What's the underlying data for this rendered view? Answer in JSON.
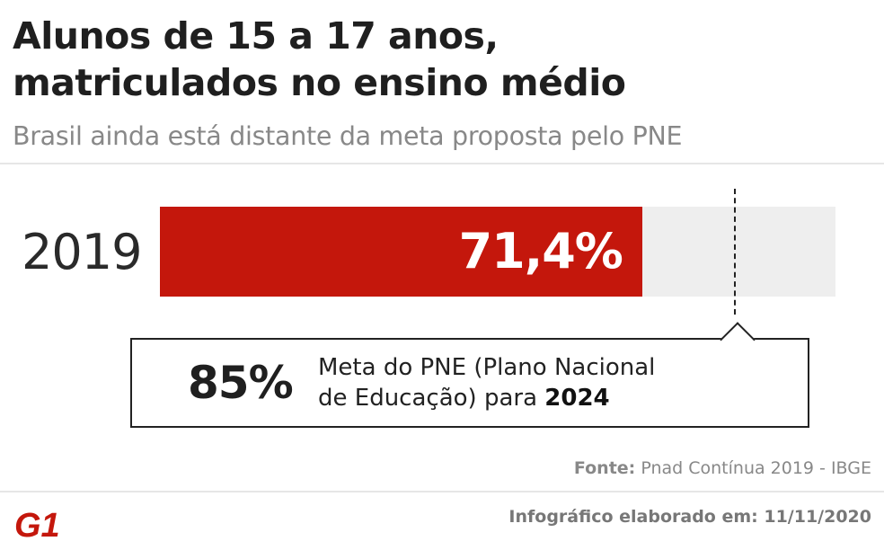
{
  "header": {
    "title_line1": "Alunos de 15 a 17 anos,",
    "title_line2": "matriculados no ensino médio",
    "subtitle": "Brasil ainda está distante da meta proposta pelo PNE"
  },
  "chart_data": {
    "type": "bar",
    "categories": [
      "2019"
    ],
    "values": [
      71.4
    ],
    "value_labels": [
      "71,4%"
    ],
    "xlim": [
      0,
      100
    ],
    "target": {
      "value": 85,
      "label": "85%",
      "description_prefix": "Meta do PNE (Plano Nacional",
      "description_middle": "de Educação) para",
      "description_year": "2024"
    },
    "colors": {
      "bar": "#c4170c",
      "track": "#eeeeee"
    }
  },
  "footer": {
    "source_label": "Fonte:",
    "source_text": "Pnad Contínua 2019 - IBGE",
    "credit": "Infográfico elaborado em: 11/11/2020",
    "logo_text": "G1",
    "logo_color": "#c4170c"
  }
}
